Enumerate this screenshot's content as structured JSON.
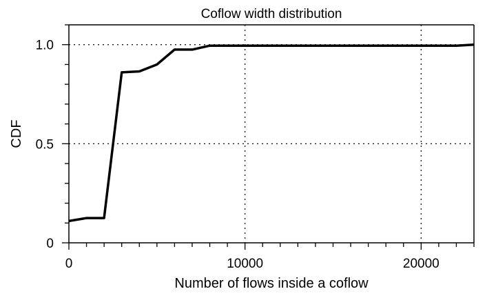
{
  "chart_data": {
    "type": "line",
    "title": "Coflow width distribution",
    "xlabel": "Number of flows inside a coflow",
    "ylabel": "CDF",
    "xlim": [
      0,
      23000
    ],
    "ylim": [
      0,
      1.1
    ],
    "x_ticks": [
      {
        "value": 0,
        "label": "0"
      },
      {
        "value": 10000,
        "label": "10000"
      },
      {
        "value": 20000,
        "label": "20000"
      }
    ],
    "y_ticks": [
      {
        "value": 0,
        "label": "0"
      },
      {
        "value": 0.5,
        "label": "0.5"
      },
      {
        "value": 1.0,
        "label": "1.0"
      }
    ],
    "x_minor_step": 1000,
    "y_minor_step": 0.1,
    "grid": "dotted at major ticks",
    "series": [
      {
        "color": "#000000",
        "x": [
          0,
          1000,
          2000,
          3000,
          4000,
          5000,
          6000,
          7000,
          8000,
          9000,
          10000,
          15000,
          20000,
          22000,
          23000
        ],
        "values": [
          0.11,
          0.125,
          0.125,
          0.86,
          0.865,
          0.9,
          0.975,
          0.975,
          0.995,
          0.995,
          0.995,
          0.995,
          0.995,
          0.995,
          1.0
        ]
      }
    ]
  }
}
